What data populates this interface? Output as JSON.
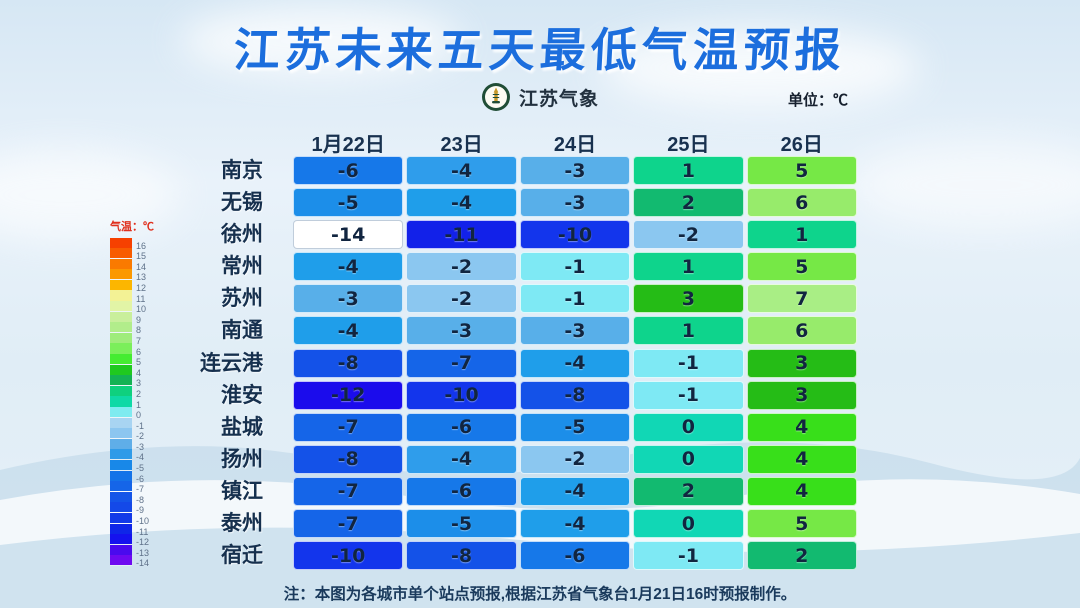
{
  "title": "江苏未来五天最低气温预报",
  "brand": {
    "name": "江苏气象"
  },
  "unit_label": "单位：℃",
  "legend": {
    "title": "气温：℃",
    "entries": [
      {
        "label": "16",
        "color": "#F64000"
      },
      {
        "label": "15",
        "color": "#F85C00"
      },
      {
        "label": "14",
        "color": "#FA7A00"
      },
      {
        "label": "13",
        "color": "#FB9800"
      },
      {
        "label": "12",
        "color": "#FCB600"
      },
      {
        "label": "11",
        "color": "#F3F295"
      },
      {
        "label": "10",
        "color": "#E2F4A6"
      },
      {
        "label": "9",
        "color": "#C9EF9C"
      },
      {
        "label": "8",
        "color": "#B2ED8B"
      },
      {
        "label": "7",
        "color": "#9FEC7B"
      },
      {
        "label": "6",
        "color": "#7BEF5B"
      },
      {
        "label": "5",
        "color": "#45EC31"
      },
      {
        "label": "4",
        "color": "#1FC91F"
      },
      {
        "label": "3",
        "color": "#14B254"
      },
      {
        "label": "2",
        "color": "#0FD07E"
      },
      {
        "label": "1",
        "color": "#0FD9A6"
      },
      {
        "label": "0",
        "color": "#7FEBF0"
      },
      {
        "label": "-1",
        "color": "#A8D4F2"
      },
      {
        "label": "-2",
        "color": "#8CC6F0"
      },
      {
        "label": "-3",
        "color": "#5FAEE8"
      },
      {
        "label": "-4",
        "color": "#2F9BE8"
      },
      {
        "label": "-5",
        "color": "#1888E8"
      },
      {
        "label": "-6",
        "color": "#1473E8"
      },
      {
        "label": "-7",
        "color": "#1565E8"
      },
      {
        "label": "-8",
        "color": "#1455E8"
      },
      {
        "label": "-9",
        "color": "#1449E8"
      },
      {
        "label": "-10",
        "color": "#123AE8"
      },
      {
        "label": "-11",
        "color": "#0F26E8"
      },
      {
        "label": "-12",
        "color": "#1512EE"
      },
      {
        "label": "-13",
        "color": "#4A0AEE"
      },
      {
        "label": "-14",
        "color": "#6E0AF0"
      }
    ]
  },
  "table": {
    "date_headers": [
      "1月22日",
      "23日",
      "24日",
      "25日",
      "26日"
    ],
    "rows": [
      {
        "city": "南京",
        "cells": [
          {
            "value": "-6",
            "color": "#1678E9"
          },
          {
            "value": "-4",
            "color": "#2F9DEB"
          },
          {
            "value": "-3",
            "color": "#58AFE9"
          },
          {
            "value": "1",
            "color": "#0ED48C"
          },
          {
            "value": "5",
            "color": "#76E846"
          }
        ]
      },
      {
        "city": "无锡",
        "cells": [
          {
            "value": "-5",
            "color": "#1C8EE9"
          },
          {
            "value": "-4",
            "color": "#1F9EEA"
          },
          {
            "value": "-3",
            "color": "#58AFE9"
          },
          {
            "value": "2",
            "color": "#12BA70"
          },
          {
            "value": "6",
            "color": "#97EB6B"
          }
        ]
      },
      {
        "city": "徐州",
        "cells": [
          {
            "value": "-14",
            "color": "#FFFFFF"
          },
          {
            "value": "-11",
            "color": "#1221E9"
          },
          {
            "value": "-10",
            "color": "#1335EC"
          },
          {
            "value": "-2",
            "color": "#8BC7F0"
          },
          {
            "value": "1",
            "color": "#0ED48C"
          }
        ]
      },
      {
        "city": "常州",
        "cells": [
          {
            "value": "-4",
            "color": "#1F9EEA"
          },
          {
            "value": "-2",
            "color": "#8BC7F0"
          },
          {
            "value": "-1",
            "color": "#7EE9F4"
          },
          {
            "value": "1",
            "color": "#0ED48C"
          },
          {
            "value": "5",
            "color": "#76E846"
          }
        ]
      },
      {
        "city": "苏州",
        "cells": [
          {
            "value": "-3",
            "color": "#58AFE9"
          },
          {
            "value": "-2",
            "color": "#8BC7F0"
          },
          {
            "value": "-1",
            "color": "#7EE9F4"
          },
          {
            "value": "3",
            "color": "#25BC16"
          },
          {
            "value": "7",
            "color": "#A9EE85"
          }
        ]
      },
      {
        "city": "南通",
        "cells": [
          {
            "value": "-4",
            "color": "#1F9EEA"
          },
          {
            "value": "-3",
            "color": "#58AFE9"
          },
          {
            "value": "-3",
            "color": "#58AFE9"
          },
          {
            "value": "1",
            "color": "#0ED48C"
          },
          {
            "value": "6",
            "color": "#97EB6B"
          }
        ]
      },
      {
        "city": "连云港",
        "cells": [
          {
            "value": "-8",
            "color": "#1452E8"
          },
          {
            "value": "-7",
            "color": "#1565E8"
          },
          {
            "value": "-4",
            "color": "#1F9EEA"
          },
          {
            "value": "-1",
            "color": "#7EE9F4"
          },
          {
            "value": "3",
            "color": "#25BC16"
          }
        ]
      },
      {
        "city": "淮安",
        "cells": [
          {
            "value": "-12",
            "color": "#1B0CEC"
          },
          {
            "value": "-10",
            "color": "#1335EC"
          },
          {
            "value": "-8",
            "color": "#1452E8"
          },
          {
            "value": "-1",
            "color": "#7EE9F4"
          },
          {
            "value": "3",
            "color": "#25BC16"
          }
        ]
      },
      {
        "city": "盐城",
        "cells": [
          {
            "value": "-7",
            "color": "#1565E8"
          },
          {
            "value": "-6",
            "color": "#1678E9"
          },
          {
            "value": "-5",
            "color": "#1C8EE9"
          },
          {
            "value": "0",
            "color": "#11D7B5"
          },
          {
            "value": "4",
            "color": "#38DF1A"
          }
        ]
      },
      {
        "city": "扬州",
        "cells": [
          {
            "value": "-8",
            "color": "#1452E8"
          },
          {
            "value": "-4",
            "color": "#2F9DEB"
          },
          {
            "value": "-2",
            "color": "#8BC7F0"
          },
          {
            "value": "0",
            "color": "#11D7B5"
          },
          {
            "value": "4",
            "color": "#38DF1A"
          }
        ]
      },
      {
        "city": "镇江",
        "cells": [
          {
            "value": "-7",
            "color": "#1565E8"
          },
          {
            "value": "-6",
            "color": "#1678E9"
          },
          {
            "value": "-4",
            "color": "#1F9EEA"
          },
          {
            "value": "2",
            "color": "#12BA70"
          },
          {
            "value": "4",
            "color": "#38DF1A"
          }
        ]
      },
      {
        "city": "泰州",
        "cells": [
          {
            "value": "-7",
            "color": "#1565E8"
          },
          {
            "value": "-5",
            "color": "#1C8EE9"
          },
          {
            "value": "-4",
            "color": "#1F9EEA"
          },
          {
            "value": "0",
            "color": "#11D7B5"
          },
          {
            "value": "5",
            "color": "#76E846"
          }
        ]
      },
      {
        "city": "宿迁",
        "cells": [
          {
            "value": "-10",
            "color": "#1335EC"
          },
          {
            "value": "-8",
            "color": "#1452E8"
          },
          {
            "value": "-6",
            "color": "#1678E9"
          },
          {
            "value": "-1",
            "color": "#7EE9F4"
          },
          {
            "value": "2",
            "color": "#12BA70"
          }
        ]
      }
    ]
  },
  "note": "注：本图为各城市单个站点预报,根据江苏省气象台1月21日16时预报制作。",
  "colors": {
    "title_blue": "#1C6EDD",
    "header_navy": "#18314F",
    "legend_title_red": "#E0301E",
    "logo_green": "#204D36",
    "logo_gold": "#C79A2B"
  },
  "chart_data": {
    "type": "heatmap",
    "title": "江苏未来五天最低气温预报",
    "unit": "℃",
    "columns": [
      "1月22日",
      "23日",
      "24日",
      "25日",
      "26日"
    ],
    "rows": [
      "南京",
      "无锡",
      "徐州",
      "常州",
      "苏州",
      "南通",
      "连云港",
      "淮安",
      "盐城",
      "扬州",
      "镇江",
      "泰州",
      "宿迁"
    ],
    "values": [
      [
        -6,
        -4,
        -3,
        1,
        5
      ],
      [
        -5,
        -4,
        -3,
        2,
        6
      ],
      [
        -14,
        -11,
        -10,
        -2,
        1
      ],
      [
        -4,
        -2,
        -1,
        1,
        5
      ],
      [
        -3,
        -2,
        -1,
        3,
        7
      ],
      [
        -4,
        -3,
        -3,
        1,
        6
      ],
      [
        -8,
        -7,
        -4,
        -1,
        3
      ],
      [
        -12,
        -10,
        -8,
        -1,
        3
      ],
      [
        -7,
        -6,
        -5,
        0,
        4
      ],
      [
        -8,
        -4,
        -2,
        0,
        4
      ],
      [
        -7,
        -6,
        -4,
        2,
        4
      ],
      [
        -7,
        -5,
        -4,
        0,
        5
      ],
      [
        -10,
        -8,
        -6,
        -1,
        2
      ]
    ],
    "legend_scale": {
      "max": 16,
      "min": -14
    },
    "legend_position": "left"
  }
}
